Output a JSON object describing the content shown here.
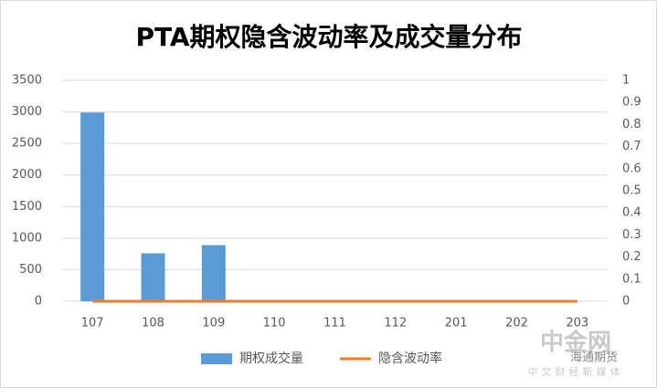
{
  "chart_data": {
    "type": "bar",
    "title": "PTA期权隐含波动率及成交量分布",
    "categories": [
      "107",
      "108",
      "109",
      "110",
      "111",
      "112",
      "201",
      "202",
      "203"
    ],
    "series": [
      {
        "name": "期权成交量",
        "color": "#5b9bd5",
        "type": "bar",
        "values": [
          2990,
          760,
          890,
          0,
          0,
          0,
          0,
          0,
          0
        ]
      },
      {
        "name": "隐含波动率",
        "color": "#ed7d31",
        "type": "line",
        "axis": "y2",
        "values": [
          0,
          0,
          0,
          0,
          0,
          0,
          0,
          0,
          0
        ]
      }
    ],
    "ylim": [
      0,
      3500
    ],
    "yticks": [
      0,
      500,
      1000,
      1500,
      2000,
      2500,
      3000,
      3500
    ],
    "y2lim": [
      0,
      1
    ],
    "y2ticks": [
      0,
      0.1,
      0.2,
      0.3,
      0.4,
      0.5,
      0.6,
      0.7,
      0.8,
      0.9,
      1
    ],
    "grid": true,
    "legend": "bottom",
    "watermark": [
      "中金网",
      "中文财经新媒体",
      "海通期货"
    ]
  }
}
